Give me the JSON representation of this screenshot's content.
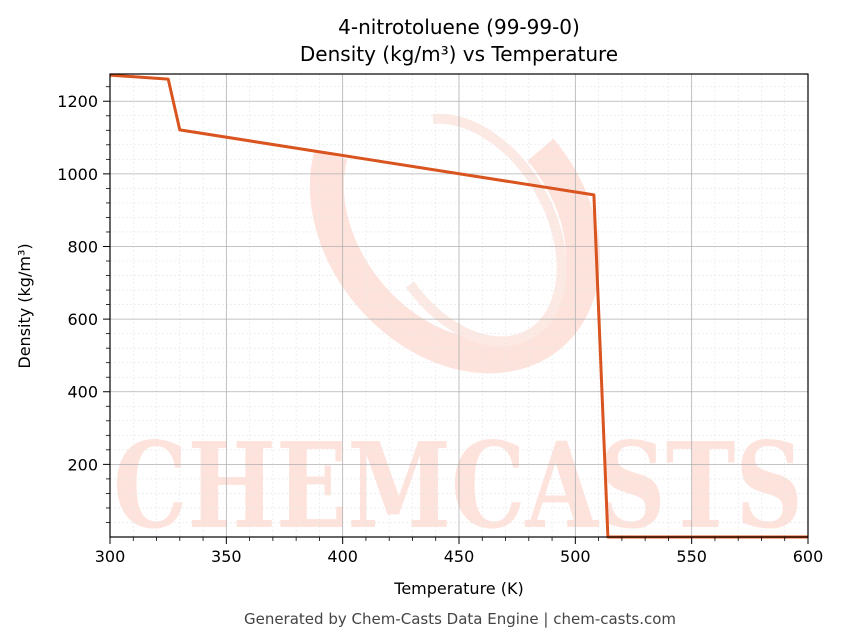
{
  "chart_data": {
    "type": "line",
    "title_line1": "4-nitrotoluene (99-99-0)",
    "title_line2": "Density (kg/m³) vs Temperature",
    "xlabel": "Temperature (K)",
    "ylabel": "Density (kg/m³)",
    "xlim": [
      300,
      600
    ],
    "ylim": [
      0,
      1275
    ],
    "x_ticks": [
      300,
      350,
      400,
      450,
      500,
      550,
      600
    ],
    "y_ticks": [
      200,
      400,
      600,
      800,
      1000,
      1200
    ],
    "grid": true,
    "series": [
      {
        "color": "#d9541f",
        "x": [
          300,
          325,
          330,
          508,
          514,
          600
        ],
        "y": [
          1272,
          1261,
          1121,
          942,
          0,
          0
        ]
      }
    ]
  },
  "watermark": {
    "text": "CHEMCASTS"
  },
  "footer": "Generated by Chem-Casts Data Engine | chem-casts.com"
}
